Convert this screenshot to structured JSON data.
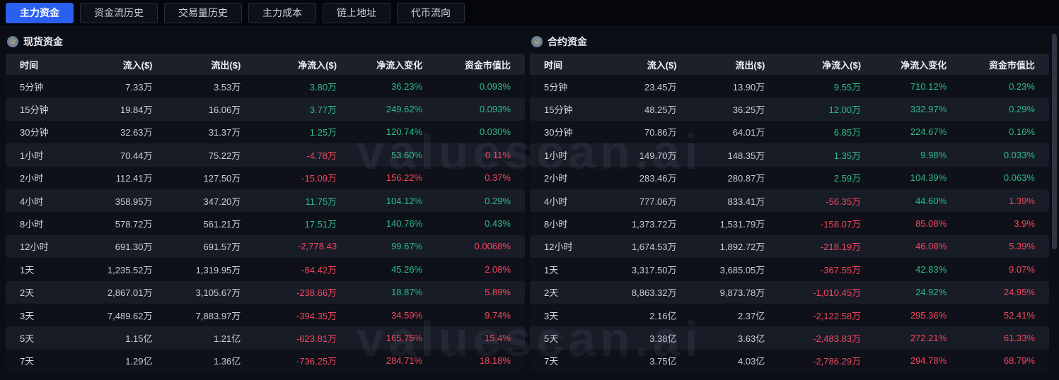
{
  "colors": {
    "accent": "#2a60f0",
    "green": "#2ebd85",
    "red": "#f6465d"
  },
  "watermark": "valuescan.ai",
  "tabs": [
    {
      "label": "主力资金",
      "active": true
    },
    {
      "label": "资金流历史",
      "active": false
    },
    {
      "label": "交易量历史",
      "active": false
    },
    {
      "label": "主力成本",
      "active": false
    },
    {
      "label": "链上地址",
      "active": false
    },
    {
      "label": "代币流向",
      "active": false
    }
  ],
  "headers": [
    "时间",
    "流入($)",
    "流出($)",
    "净流入($)",
    "净流入变化",
    "资金市值比"
  ],
  "tables": [
    {
      "title": "现货资金",
      "rows": [
        {
          "time": "5分钟",
          "inflow": "7.33万",
          "outflow": "3.53万",
          "net": "3.80万",
          "net_c": "g",
          "chg": "36.23%",
          "chg_c": "g",
          "ratio": "0.093%",
          "ratio_c": "g"
        },
        {
          "time": "15分钟",
          "inflow": "19.84万",
          "outflow": "16.06万",
          "net": "3.77万",
          "net_c": "g",
          "chg": "249.62%",
          "chg_c": "g",
          "ratio": "0.093%",
          "ratio_c": "g"
        },
        {
          "time": "30分钟",
          "inflow": "32.63万",
          "outflow": "31.37万",
          "net": "1.25万",
          "net_c": "g",
          "chg": "120.74%",
          "chg_c": "g",
          "ratio": "0.030%",
          "ratio_c": "g"
        },
        {
          "time": "1小时",
          "inflow": "70.44万",
          "outflow": "75.22万",
          "net": "-4.78万",
          "net_c": "r",
          "chg": "53.60%",
          "chg_c": "g",
          "ratio": "0.11%",
          "ratio_c": "r"
        },
        {
          "time": "2小时",
          "inflow": "112.41万",
          "outflow": "127.50万",
          "net": "-15.09万",
          "net_c": "r",
          "chg": "156.22%",
          "chg_c": "r",
          "ratio": "0.37%",
          "ratio_c": "r"
        },
        {
          "time": "4小时",
          "inflow": "358.95万",
          "outflow": "347.20万",
          "net": "11.75万",
          "net_c": "g",
          "chg": "104.12%",
          "chg_c": "g",
          "ratio": "0.29%",
          "ratio_c": "g"
        },
        {
          "time": "8小时",
          "inflow": "578.72万",
          "outflow": "561.21万",
          "net": "17.51万",
          "net_c": "g",
          "chg": "140.76%",
          "chg_c": "g",
          "ratio": "0.43%",
          "ratio_c": "g"
        },
        {
          "time": "12小时",
          "inflow": "691.30万",
          "outflow": "691.57万",
          "net": "-2,778.43",
          "net_c": "r",
          "chg": "99.67%",
          "chg_c": "g",
          "ratio": "0.0068%",
          "ratio_c": "r"
        },
        {
          "time": "1天",
          "inflow": "1,235.52万",
          "outflow": "1,319.95万",
          "net": "-84.42万",
          "net_c": "r",
          "chg": "45.26%",
          "chg_c": "g",
          "ratio": "2.08%",
          "ratio_c": "r"
        },
        {
          "time": "2天",
          "inflow": "2,867.01万",
          "outflow": "3,105.67万",
          "net": "-238.66万",
          "net_c": "r",
          "chg": "18.87%",
          "chg_c": "g",
          "ratio": "5.89%",
          "ratio_c": "r"
        },
        {
          "time": "3天",
          "inflow": "7,489.62万",
          "outflow": "7,883.97万",
          "net": "-394.35万",
          "net_c": "r",
          "chg": "34.59%",
          "chg_c": "r",
          "ratio": "9.74%",
          "ratio_c": "r"
        },
        {
          "time": "5天",
          "inflow": "1.15亿",
          "outflow": "1.21亿",
          "net": "-623.81万",
          "net_c": "r",
          "chg": "165.75%",
          "chg_c": "r",
          "ratio": "15.4%",
          "ratio_c": "r"
        },
        {
          "time": "7天",
          "inflow": "1.29亿",
          "outflow": "1.36亿",
          "net": "-736.25万",
          "net_c": "r",
          "chg": "284.71%",
          "chg_c": "r",
          "ratio": "18.18%",
          "ratio_c": "r"
        }
      ]
    },
    {
      "title": "合约资金",
      "rows": [
        {
          "time": "5分钟",
          "inflow": "23.45万",
          "outflow": "13.90万",
          "net": "9.55万",
          "net_c": "g",
          "chg": "710.12%",
          "chg_c": "g",
          "ratio": "0.23%",
          "ratio_c": "g"
        },
        {
          "time": "15分钟",
          "inflow": "48.25万",
          "outflow": "36.25万",
          "net": "12.00万",
          "net_c": "g",
          "chg": "332.97%",
          "chg_c": "g",
          "ratio": "0.29%",
          "ratio_c": "g"
        },
        {
          "time": "30分钟",
          "inflow": "70.86万",
          "outflow": "64.01万",
          "net": "6.85万",
          "net_c": "g",
          "chg": "224.67%",
          "chg_c": "g",
          "ratio": "0.16%",
          "ratio_c": "g"
        },
        {
          "time": "1小时",
          "inflow": "149.70万",
          "outflow": "148.35万",
          "net": "1.35万",
          "net_c": "g",
          "chg": "9.98%",
          "chg_c": "g",
          "ratio": "0.033%",
          "ratio_c": "g"
        },
        {
          "time": "2小时",
          "inflow": "283.46万",
          "outflow": "280.87万",
          "net": "2.59万",
          "net_c": "g",
          "chg": "104.39%",
          "chg_c": "g",
          "ratio": "0.063%",
          "ratio_c": "g"
        },
        {
          "time": "4小时",
          "inflow": "777.06万",
          "outflow": "833.41万",
          "net": "-56.35万",
          "net_c": "r",
          "chg": "44.60%",
          "chg_c": "g",
          "ratio": "1.39%",
          "ratio_c": "r"
        },
        {
          "time": "8小时",
          "inflow": "1,373.72万",
          "outflow": "1,531.79万",
          "net": "-158.07万",
          "net_c": "r",
          "chg": "85.08%",
          "chg_c": "r",
          "ratio": "3.9%",
          "ratio_c": "r"
        },
        {
          "time": "12小时",
          "inflow": "1,674.53万",
          "outflow": "1,892.72万",
          "net": "-218.19万",
          "net_c": "r",
          "chg": "46.08%",
          "chg_c": "r",
          "ratio": "5.39%",
          "ratio_c": "r"
        },
        {
          "time": "1天",
          "inflow": "3,317.50万",
          "outflow": "3,685.05万",
          "net": "-367.55万",
          "net_c": "r",
          "chg": "42.83%",
          "chg_c": "g",
          "ratio": "9.07%",
          "ratio_c": "r"
        },
        {
          "time": "2天",
          "inflow": "8,863.32万",
          "outflow": "9,873.78万",
          "net": "-1,010.45万",
          "net_c": "r",
          "chg": "24.92%",
          "chg_c": "g",
          "ratio": "24.95%",
          "ratio_c": "r"
        },
        {
          "time": "3天",
          "inflow": "2.16亿",
          "outflow": "2.37亿",
          "net": "-2,122.58万",
          "net_c": "r",
          "chg": "295.36%",
          "chg_c": "r",
          "ratio": "52.41%",
          "ratio_c": "r"
        },
        {
          "time": "5天",
          "inflow": "3.38亿",
          "outflow": "3.63亿",
          "net": "-2,483.83万",
          "net_c": "r",
          "chg": "272.21%",
          "chg_c": "r",
          "ratio": "61.33%",
          "ratio_c": "r"
        },
        {
          "time": "7天",
          "inflow": "3.75亿",
          "outflow": "4.03亿",
          "net": "-2,786.29万",
          "net_c": "r",
          "chg": "294.78%",
          "chg_c": "r",
          "ratio": "68.79%",
          "ratio_c": "r"
        }
      ]
    }
  ]
}
